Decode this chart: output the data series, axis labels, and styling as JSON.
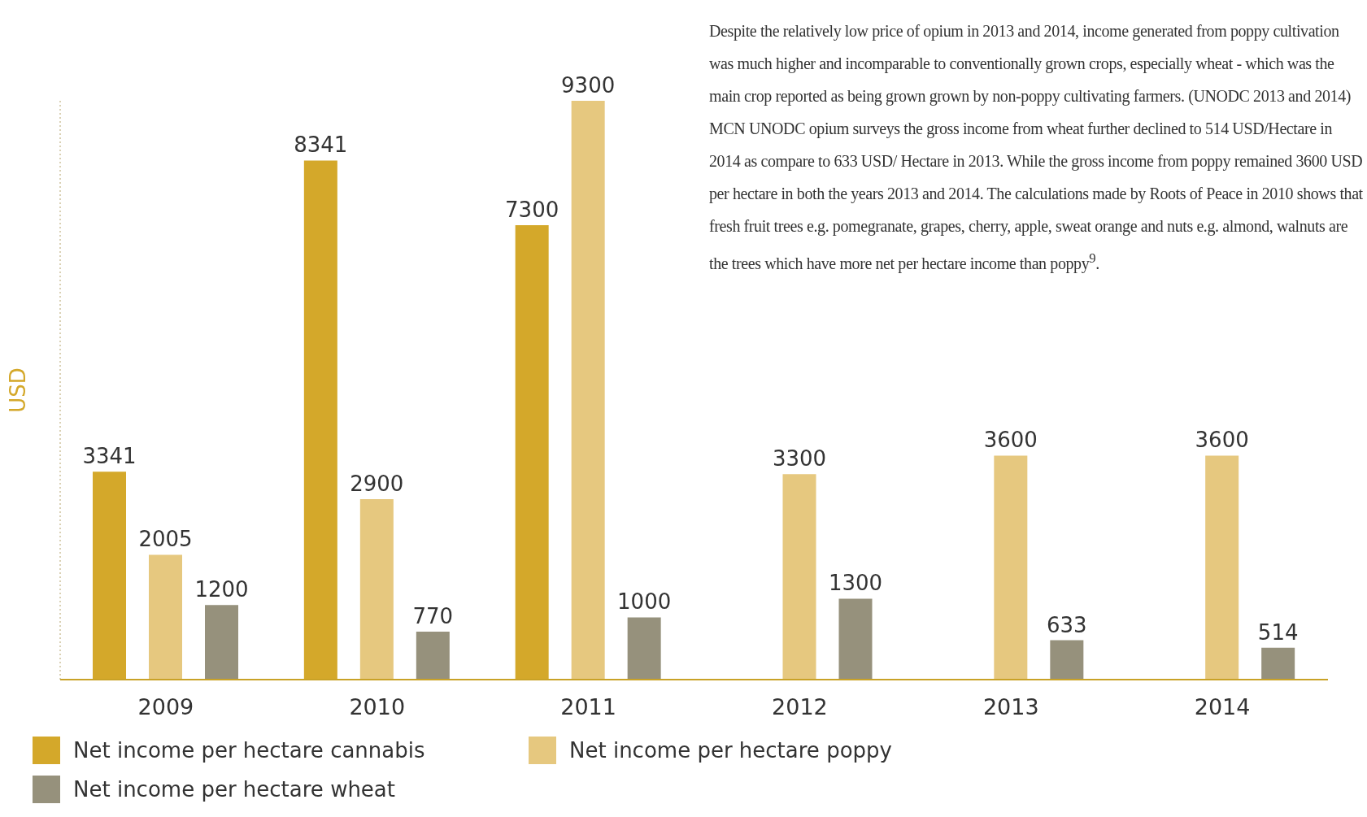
{
  "chart_data": {
    "type": "bar",
    "ylabel": "USD",
    "categories": [
      "2009",
      "2010",
      "2011",
      "2012",
      "2013",
      "2014"
    ],
    "series": [
      {
        "name": "Net income per hectare cannabis",
        "color": "#d4a82a",
        "values": [
          3341,
          8341,
          7300,
          null,
          null,
          null
        ]
      },
      {
        "name": "Net income per hectare poppy",
        "color": "#e6c87f",
        "values": [
          2005,
          2900,
          9300,
          3300,
          3600,
          3600
        ]
      },
      {
        "name": "Net income per hectare wheat",
        "color": "#96917c",
        "values": [
          1200,
          770,
          1000,
          1300,
          633,
          514
        ]
      }
    ],
    "data_labels": true,
    "grid": false,
    "legend": "bottom left",
    "annotations": [
      "Despite the relatively low price of opium in 2013 and 2014, income generated from poppy cultivation was much higher and incomparable to conventionally grown crops, especially wheat - which was the main crop reported as being grown grown by non-poppy cultivating farmers. (UNODC 2013 and 2014) MCN UNODC opium surveys the gross income from wheat further declined to 514 USD/Hectare in 2014 as compare to 633 USD/ Hectare in 2013. While the gross income from poppy remained 3600 USD per hectare in both the years 2013 and 2014. The calculations made by Roots of Peace in 2010 shows that fresh fruit trees e.g. pomegranate, grapes, cherry, apple, sweat orange and nuts e.g. almond, walnuts are the trees which have more net per hectare income than poppy$^{9}$."
    ]
  }
}
